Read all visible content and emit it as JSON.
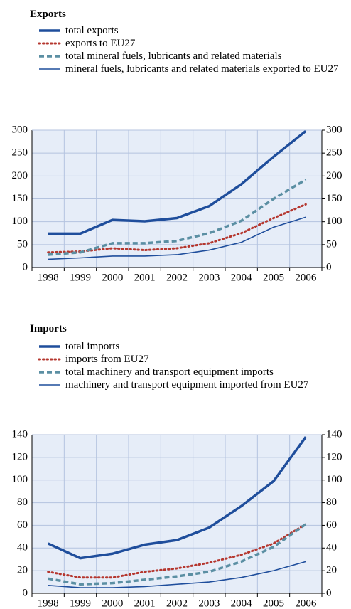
{
  "chart_data": [
    {
      "type": "line",
      "title": "Exports",
      "categories": [
        "1998",
        "1999",
        "2000",
        "2001",
        "2002",
        "2003",
        "2004",
        "2005",
        "2006"
      ],
      "series": [
        {
          "name": "total exports",
          "color": "#1f4e9c",
          "style": "thick",
          "values": [
            74,
            74,
            104,
            101,
            108,
            134,
            182,
            242,
            298
          ]
        },
        {
          "name": "exports to EU27",
          "color": "#b5372f",
          "style": "dotted",
          "values": [
            33,
            35,
            42,
            38,
            42,
            53,
            75,
            108,
            138
          ]
        },
        {
          "name": "total mineral fuels, lubricants and related materials",
          "color": "#5b8fa3",
          "style": "dashed",
          "values": [
            28,
            33,
            53,
            53,
            58,
            75,
            102,
            150,
            192
          ]
        },
        {
          "name": "mineral fuels, lubricants and related materials exported to EU27",
          "color": "#1f4e9c",
          "style": "thin",
          "values": [
            18,
            21,
            25,
            25,
            28,
            38,
            55,
            88,
            110
          ]
        }
      ],
      "ylim": [
        0,
        300
      ],
      "yticks": [
        0,
        50,
        100,
        150,
        200,
        250,
        300
      ],
      "y2lim": [
        0,
        300
      ],
      "y2ticks": [
        0,
        50,
        100,
        150,
        200,
        250,
        300
      ],
      "grid": true
    },
    {
      "type": "line",
      "title": "Imports",
      "categories": [
        "1998",
        "1999",
        "2000",
        "2001",
        "2002",
        "2003",
        "2004",
        "2005",
        "2006"
      ],
      "series": [
        {
          "name": "total imports",
          "color": "#1f4e9c",
          "style": "thick",
          "values": [
            44,
            31,
            35,
            43,
            47,
            58,
            77,
            99,
            138
          ]
        },
        {
          "name": "imports from EU27",
          "color": "#b5372f",
          "style": "dotted",
          "values": [
            19,
            14,
            14,
            19,
            22,
            27,
            34,
            44,
            61
          ]
        },
        {
          "name": "total machinery and transport equipment imports",
          "color": "#5b8fa3",
          "style": "dashed",
          "values": [
            13,
            8,
            9,
            12,
            15,
            19,
            28,
            41,
            61
          ]
        },
        {
          "name": "machinery and transport equipment imported from EU27",
          "color": "#1f4e9c",
          "style": "thin",
          "values": [
            7,
            5,
            5,
            6,
            8,
            10,
            14,
            20,
            28
          ]
        }
      ],
      "ylim": [
        0,
        140
      ],
      "yticks": [
        0,
        20,
        40,
        60,
        80,
        100,
        120,
        140
      ],
      "y2lim": [
        0,
        140
      ],
      "y2ticks": [
        0,
        20,
        40,
        60,
        80,
        100,
        120,
        140
      ],
      "grid": true
    }
  ]
}
